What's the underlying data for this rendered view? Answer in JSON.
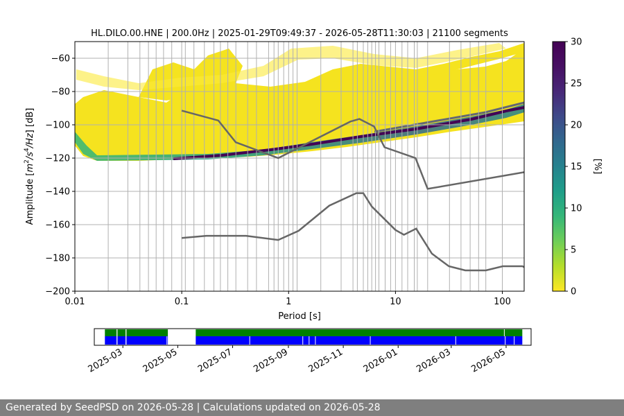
{
  "chart_data": {
    "type": "heatmap",
    "title": "HL.DILO.00.HNE | 200.0Hz | 2025-01-29T09:49:37 - 2026-05-28T11:30:03 | 21100 segments",
    "xlabel": "Period [s]",
    "ylabel_parts": [
      "Amplitude [",
      "m",
      "2",
      "/",
      "s",
      "4",
      "/",
      "Hz",
      "] [dB]"
    ],
    "x_scale": "log",
    "xlim": [
      0.01,
      160
    ],
    "ylim": [
      -200,
      -50
    ],
    "x_ticks": [
      {
        "v": 0.01,
        "label": "0.01"
      },
      {
        "v": 0.1,
        "label": "0.1"
      },
      {
        "v": 1,
        "label": "1"
      },
      {
        "v": 10,
        "label": "10"
      },
      {
        "v": 100,
        "label": "100"
      }
    ],
    "y_ticks": [
      {
        "v": -60,
        "label": "−60"
      },
      {
        "v": -80,
        "label": "−80"
      },
      {
        "v": -100,
        "label": "−100"
      },
      {
        "v": -120,
        "label": "−120"
      },
      {
        "v": -140,
        "label": "−140"
      },
      {
        "v": -160,
        "label": "−160"
      },
      {
        "v": -180,
        "label": "−180"
      },
      {
        "v": -200,
        "label": "−200"
      }
    ],
    "period_gridlines": [
      0.01,
      0.0205,
      0.0313,
      0.0406,
      0.0488,
      0.0576,
      0.0676,
      0.0806,
      0.1,
      0.108,
      0.13,
      0.163,
      0.2,
      0.23,
      0.27,
      0.321,
      0.414,
      0.5,
      0.65,
      0.73,
      0.8,
      0.9,
      1.0,
      1.1,
      1.2,
      2.0,
      3.1,
      4.0,
      4.4,
      5.0,
      5.5,
      6.0,
      6.5,
      7.0,
      8.0,
      9.0,
      10.0,
      11.5,
      13.0,
      15.0,
      16.0,
      20.0,
      32.0,
      41.0,
      50.0,
      60.0,
      70.0,
      100.0
    ],
    "colorbar": {
      "label": "[%]",
      "min": 0,
      "max": 30,
      "ticks": [
        0,
        5,
        10,
        15,
        20,
        25,
        30
      ],
      "colormap": "viridis_r"
    },
    "noise_model_high": {
      "x": [
        0.1,
        0.22,
        0.32,
        0.8,
        3.8,
        4.6,
        6.3,
        7.9,
        15.4,
        20,
        160
      ],
      "y": [
        -91.5,
        -97.4,
        -110.5,
        -120,
        -98,
        -96.5,
        -101,
        -113.5,
        -120,
        -138.5,
        -128.5
      ]
    },
    "noise_model_low": {
      "x": [
        0.1,
        0.17,
        0.4,
        0.8,
        1.24,
        2.4,
        4.3,
        5.0,
        6.0,
        10.0,
        12.0,
        15.6,
        21.9,
        31.6,
        45.0,
        70.0,
        101.0,
        154.0,
        160.0
      ],
      "y": [
        -168,
        -166.7,
        -166.7,
        -169.2,
        -163.7,
        -148.6,
        -141.1,
        -141.1,
        -149.1,
        -163.2,
        -166.1,
        -162.4,
        -177.4,
        -185,
        -187.5,
        -187.5,
        -185,
        -185,
        -185.5
      ]
    },
    "line_color": "#666666",
    "timeline": {
      "range_start": "2025-01-29",
      "range_end": "2026-05-28",
      "tick_dates": [
        "2025-03-01",
        "2025-05-01",
        "2025-07-01",
        "2025-09-01",
        "2025-11-01",
        "2026-01-01",
        "2026-03-01",
        "2026-05-01"
      ],
      "tick_labels": [
        "2025-03",
        "2025-05",
        "2025-07",
        "2025-09",
        "2025-11",
        "2026-01",
        "2026-03",
        "2026-05"
      ],
      "data_segments": [
        [
          "2025-02-09",
          "2025-02-22"
        ],
        [
          "2025-02-23",
          "2025-03-04"
        ],
        [
          "2025-03-05",
          "2025-04-20"
        ],
        [
          "2025-05-21",
          "2026-05-19"
        ]
      ],
      "gaps_blue": [
        "2025-04-19",
        "2025-07-20",
        "2025-09-17",
        "2025-09-24",
        "2025-10-01",
        "2025-12-01",
        "2026-03-06",
        "2026-04-30",
        "2026-05-10"
      ],
      "gaps_green": [
        "2026-04-29"
      ],
      "colors": {
        "upper": "#008000",
        "lower": "#0000ff"
      }
    }
  },
  "footer": {
    "text": "Generated by SeedPSD on 2026-05-28 | Calculations updated on 2026-05-28"
  }
}
